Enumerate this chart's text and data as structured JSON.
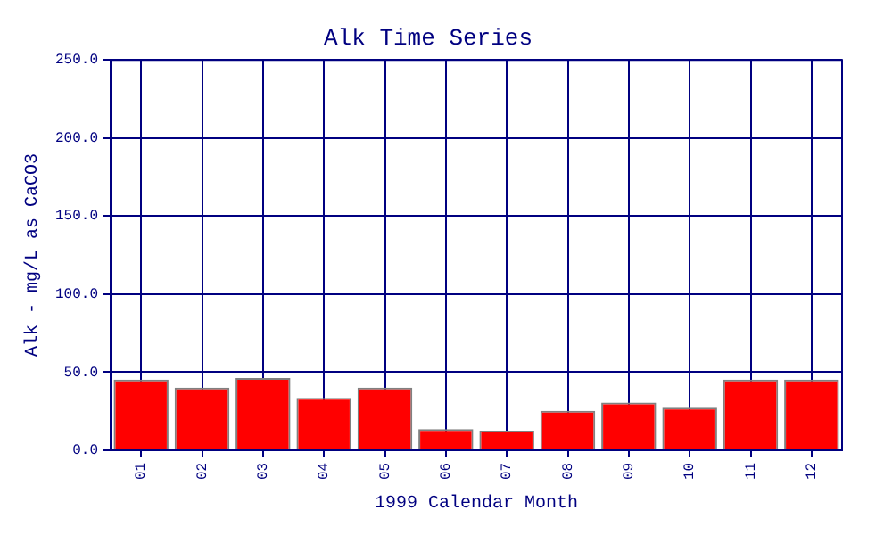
{
  "chart_data": {
    "type": "bar",
    "title": "Alk Time Series",
    "xlabel": "1999 Calendar Month",
    "ylabel": "Alk - mg/L as CaCO3",
    "categories": [
      "01",
      "02",
      "03",
      "04",
      "05",
      "06",
      "07",
      "08",
      "09",
      "10",
      "11",
      "12"
    ],
    "values": [
      45.2,
      40,
      46.2,
      33.5,
      40,
      13.4,
      12.4,
      25.1,
      30.4,
      27.2,
      45.2,
      45.2
    ],
    "color": "#ff0000",
    "ylim": [
      0,
      250
    ],
    "yticks": [
      {
        "value": 0,
        "label": "0.0"
      },
      {
        "value": 50,
        "label": "50.0"
      },
      {
        "value": 100,
        "label": "100.0"
      },
      {
        "value": 150,
        "label": "150.0"
      },
      {
        "value": 200,
        "label": "200.0"
      },
      {
        "value": 250,
        "label": "250.0"
      }
    ],
    "grid": true,
    "legend": false
  }
}
